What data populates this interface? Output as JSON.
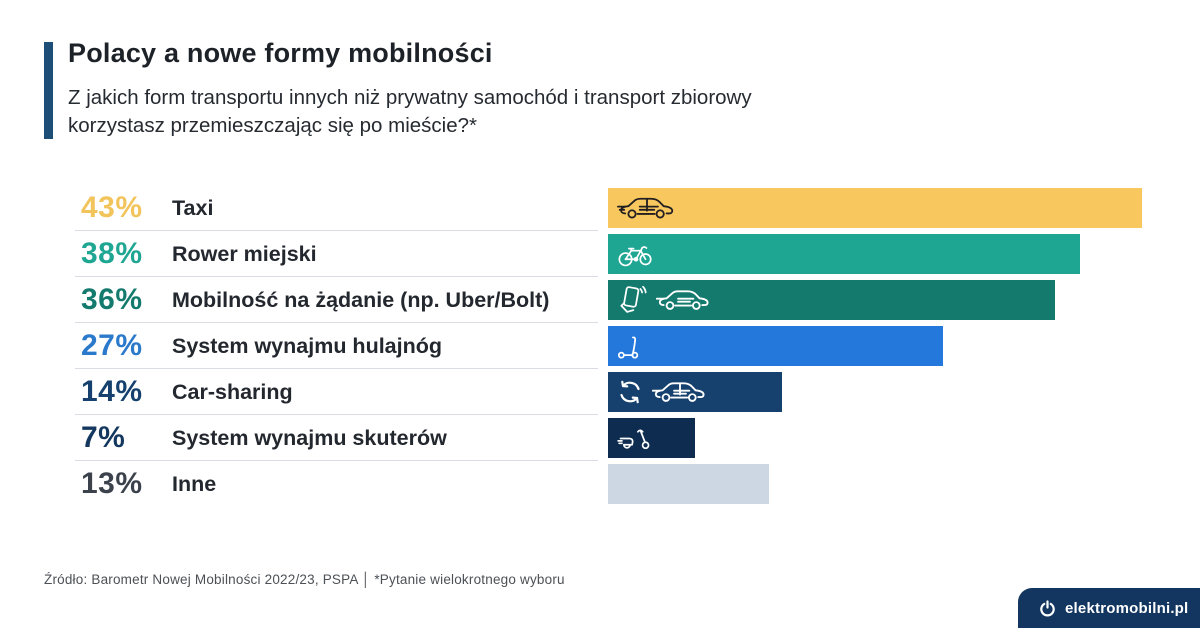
{
  "page": {
    "title": "Polacy a nowe formy mobilności",
    "subtitle_line1": "Z jakich form transportu innych niż prywatny samochód i transport zbiorowy",
    "subtitle_line2": "korzystasz przemieszczając się po mieście?*",
    "source": "Źródło: Barometr Nowej Mobilności 2022/23, PSPA │ *Pytanie wielokrotnego wyboru",
    "brand": "elektromobilni.pl",
    "colors": {
      "accent_bar": "#1d4e77",
      "logo_background": "#123660",
      "divider": "#d9dde3",
      "title_text": "#1d2228",
      "label_text": "#23272e",
      "source_text": "#4c5157"
    }
  },
  "chart_data": {
    "type": "bar",
    "orientation": "horizontal",
    "title": "Polacy a nowe formy mobilności",
    "question": "Z jakich form transportu innych niż prywatny samochód i transport zbiorowy korzystasz przemieszczając się po mieście?*",
    "unit": "%",
    "xlim": [
      0,
      43
    ],
    "grid": false,
    "legend": false,
    "categories": [
      "Taxi",
      "Rower miejski",
      "Mobilność na żądanie (np. Uber/Bolt)",
      "System wynajmu hulajnóg",
      "Car-sharing",
      "System wynajmu skuterów",
      "Inne"
    ],
    "values": [
      43,
      38,
      36,
      27,
      14,
      7,
      13
    ],
    "rows": [
      {
        "percent_label": "43%",
        "label": "Taxi",
        "value": 43,
        "bar_color": "#F8C85F",
        "percent_color": "#F2C45C",
        "icon_color": "#231f20",
        "icon": "taxi-car-icon"
      },
      {
        "percent_label": "38%",
        "label": "Rower miejski",
        "value": 38,
        "bar_color": "#1FA693",
        "percent_color": "#1FA693",
        "icon_color": "#ffffff",
        "icon": "city-bike-icon"
      },
      {
        "percent_label": "36%",
        "label": "Mobilność na żądanie (np. Uber/Bolt)",
        "value": 36,
        "bar_color": "#147A6E",
        "percent_color": "#147A6E",
        "icon_color": "#ffffff",
        "icon": "phone-hand-and-car-icon"
      },
      {
        "percent_label": "27%",
        "label": "System wynajmu hulajnóg",
        "value": 27,
        "bar_color": "#2478DC",
        "percent_color": "#2B79CB",
        "icon_color": "#ffffff",
        "icon": "kick-scooter-icon"
      },
      {
        "percent_label": "14%",
        "label": "Car-sharing",
        "value": 14,
        "bar_color": "#16406E",
        "percent_color": "#16406E",
        "icon_color": "#ffffff",
        "icon": "sync-arrows-and-car-icon"
      },
      {
        "percent_label": "7%",
        "label": "System wynajmu skuterów",
        "value": 7,
        "bar_color": "#0D2C50",
        "percent_color": "#14375F",
        "icon_color": "#ffffff",
        "icon": "moped-icon"
      },
      {
        "percent_label": "13%",
        "label": "Inne",
        "value": 13,
        "bar_color": "#CDD6E3",
        "percent_color": "#3C424C",
        "icon_color": "#CDD6E3",
        "icon": "none"
      }
    ]
  }
}
